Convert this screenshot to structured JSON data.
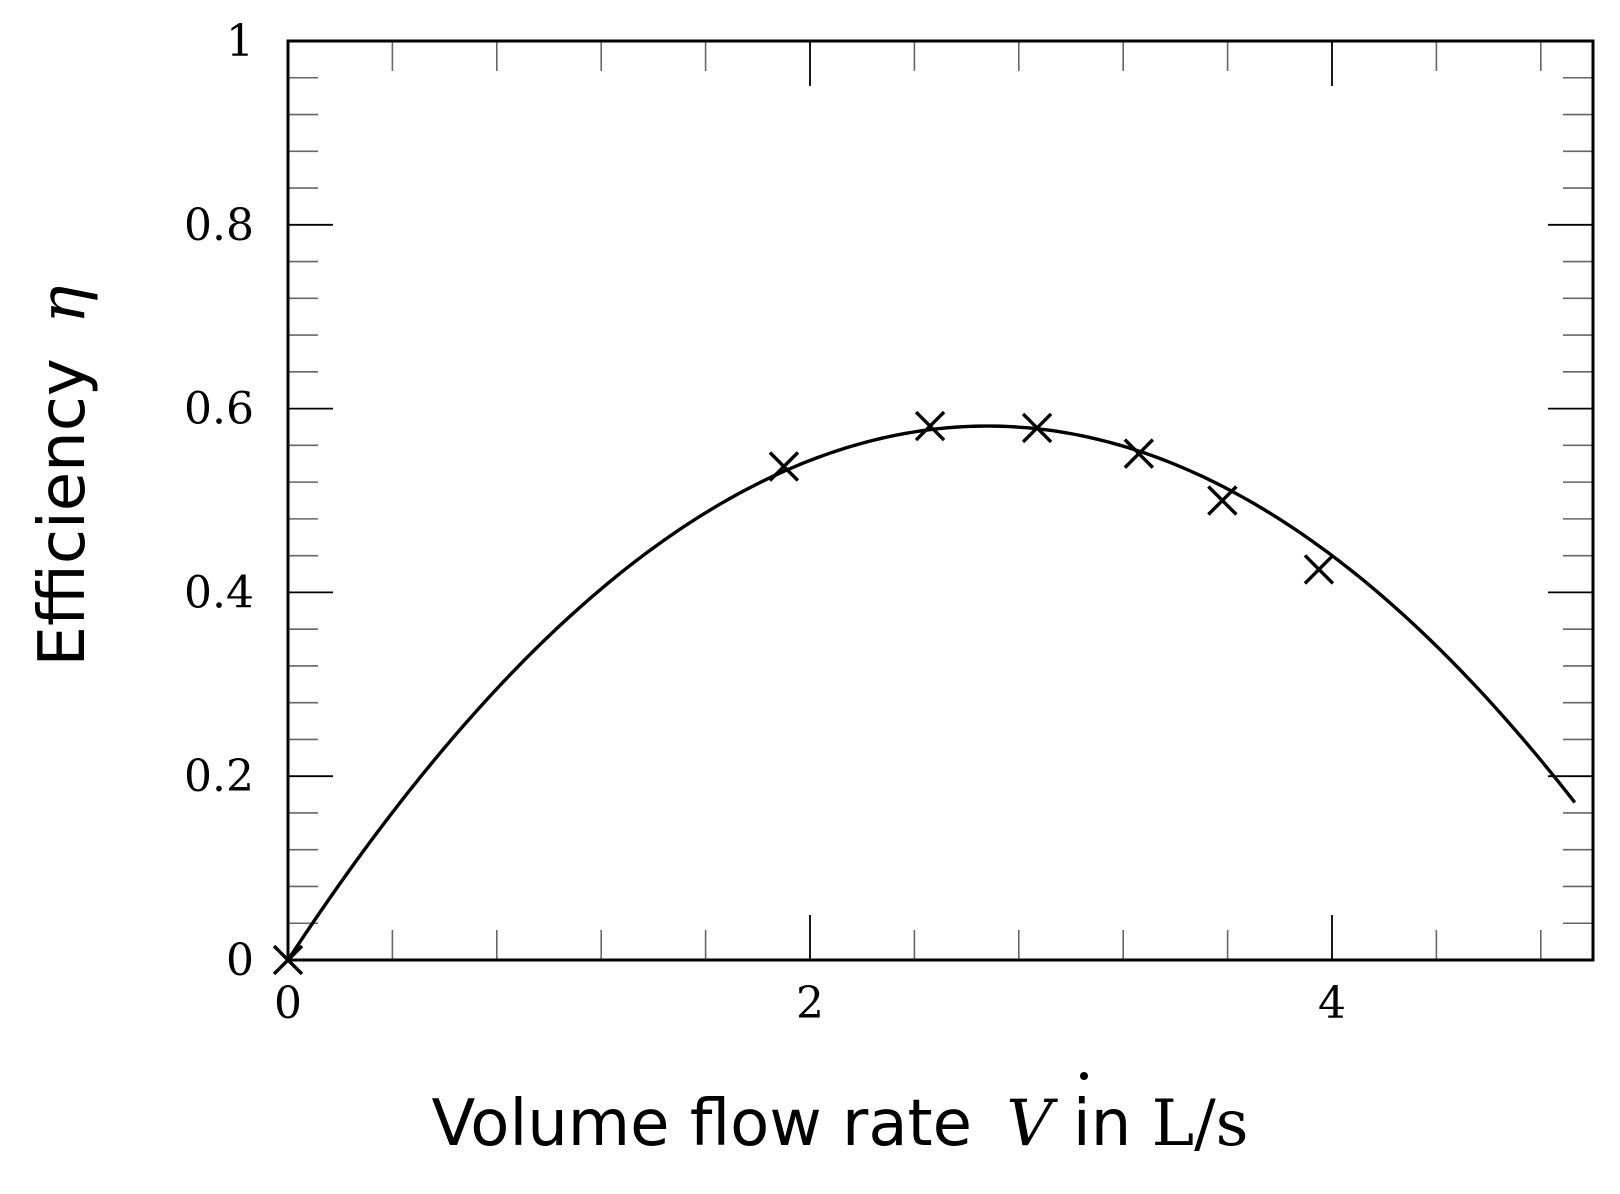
{
  "chart_data": {
    "type": "scatter",
    "xlabel_text": "Volume flow rate",
    "xlabel_symbol": "V",
    "xlabel_unit_prefix": " in ",
    "xlabel_unit": "L/s",
    "ylabel_text": "Efficiency",
    "ylabel_symbol": "η",
    "xlim": [
      0,
      5
    ],
    "ylim": [
      0,
      1
    ],
    "x_ticks": [
      0,
      2,
      4
    ],
    "x_tick_labels": [
      "0",
      "2",
      "4"
    ],
    "y_ticks": [
      0,
      0.2,
      0.4,
      0.6,
      0.8,
      1
    ],
    "y_tick_labels": [
      "0",
      "0.2",
      "0.4",
      "0.6",
      "0.8",
      "1"
    ],
    "grid": false,
    "series": [
      {
        "kind": "markers",
        "marker": "x",
        "x": [
          0,
          1.9,
          2.46,
          2.87,
          3.26,
          3.58,
          3.95
        ],
        "y": [
          0,
          0.537,
          0.581,
          0.579,
          0.551,
          0.5,
          0.425
        ]
      },
      {
        "kind": "fit-curve",
        "x_range": [
          0,
          4.93
        ],
        "vertex_x": 2.68,
        "vertex_y": 0.581
      }
    ]
  }
}
